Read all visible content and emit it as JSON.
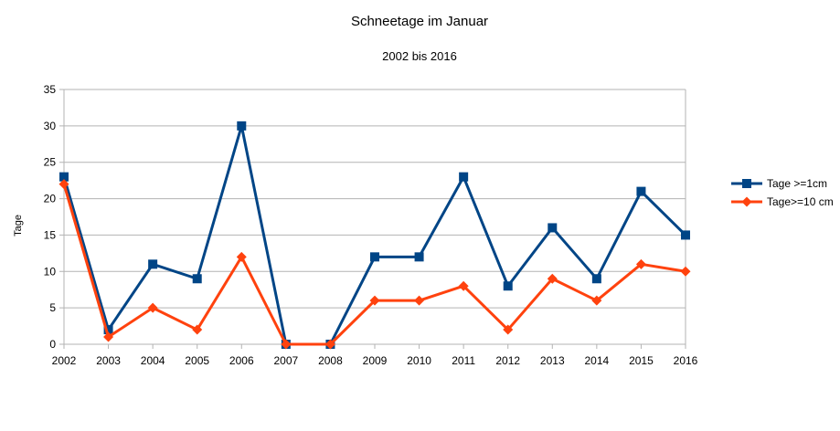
{
  "chart_data": {
    "type": "line",
    "title": "Schneetage im Januar",
    "subtitle": "2002 bis 2016",
    "xlabel": "",
    "ylabel": "Tage",
    "categories": [
      "2002",
      "2003",
      "2004",
      "2005",
      "2006",
      "2007",
      "2008",
      "2009",
      "2010",
      "2011",
      "2012",
      "2013",
      "2014",
      "2015",
      "2016"
    ],
    "ylim": [
      0,
      35
    ],
    "yticks": [
      0,
      5,
      10,
      15,
      20,
      25,
      30,
      35
    ],
    "grid": true,
    "legend_position": "right",
    "series": [
      {
        "name": "Tage >=1cm",
        "color": "#004586",
        "marker": "square",
        "values": [
          23,
          2,
          11,
          9,
          30,
          0,
          0,
          12,
          12,
          23,
          8,
          16,
          9,
          21,
          15
        ]
      },
      {
        "name": "Tage>=10 cm",
        "color": "#ff420e",
        "marker": "diamond",
        "values": [
          22,
          1,
          5,
          2,
          12,
          0,
          0,
          6,
          6,
          8,
          2,
          9,
          6,
          11,
          10
        ]
      }
    ]
  }
}
